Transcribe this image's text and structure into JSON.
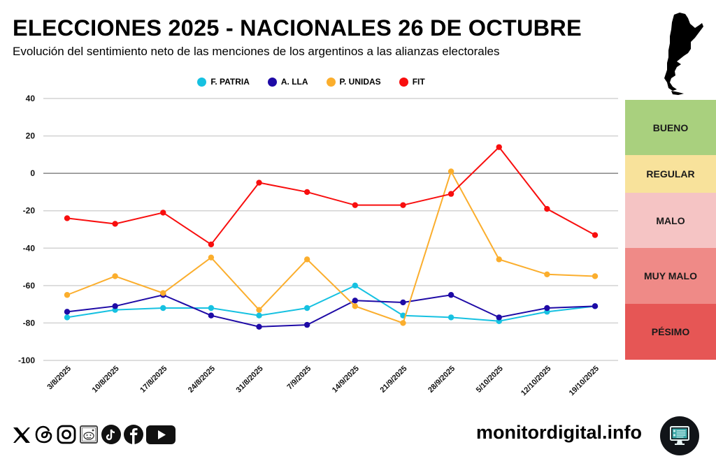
{
  "header": {
    "title": "ELECCIONES 2025 - NACIONALES 26 DE OCTUBRE",
    "subtitle": "Evolución del sentimiento neto de las menciones de los argentinos a las alianzas electorales",
    "map_icon": "argentina-map-icon"
  },
  "legend": [
    {
      "label": "F. PATRIA",
      "color": "#16c1e1"
    },
    {
      "label": "A. LLA",
      "color": "#1e0aa6"
    },
    {
      "label": "P. UNIDAS",
      "color": "#fbae2d"
    },
    {
      "label": "FIT",
      "color": "#f80e0e"
    }
  ],
  "sentiment_scale": [
    {
      "label": "BUENO",
      "color": "#a9d07e"
    },
    {
      "label": "REGULAR",
      "color": "#f8e29b"
    },
    {
      "label": "MALO",
      "color": "#f5c4c4"
    },
    {
      "label": "MUY MALO",
      "color": "#ef8a87"
    },
    {
      "label": "PÉSIMO",
      "color": "#e65655"
    }
  ],
  "chart_data": {
    "type": "line",
    "title": "ELECCIONES 2025 - NACIONALES 26 DE OCTUBRE",
    "subtitle": "Evolución del sentimiento neto de las menciones de los argentinos a las alianzas electorales",
    "xlabel": "",
    "ylabel": "",
    "ylim": [
      -100,
      40
    ],
    "yticks": [
      40,
      20,
      0,
      -20,
      -40,
      -60,
      -80,
      -100
    ],
    "grid": true,
    "legend_position": "top-center",
    "x": [
      "3/8/2025",
      "10/8/2025",
      "17/8/2025",
      "24/8/2025",
      "31/8/2025",
      "7/9/2025",
      "14/9/2025",
      "21/9/2025",
      "28/9/2025",
      "5/10/2025",
      "12/10/2025",
      "19/10/2025"
    ],
    "series": [
      {
        "name": "F. PATRIA",
        "color": "#16c1e1",
        "values": [
          -77,
          -73,
          -72,
          -72,
          -76,
          -72,
          -60,
          -76,
          -77,
          -79,
          -74,
          -71
        ]
      },
      {
        "name": "A. LLA",
        "color": "#1e0aa6",
        "values": [
          -74,
          -71,
          -65,
          -76,
          -82,
          -81,
          -68,
          -69,
          -65,
          -77,
          -72,
          -71
        ]
      },
      {
        "name": "P. UNIDAS",
        "color": "#fbae2d",
        "values": [
          -65,
          -55,
          -64,
          -45,
          -73,
          -46,
          -71,
          -80,
          1,
          -46,
          -54,
          -55
        ]
      },
      {
        "name": "FIT",
        "color": "#f80e0e",
        "values": [
          -24,
          -27,
          -21,
          -38,
          -5,
          -10,
          -17,
          -17,
          -11,
          14,
          -19,
          -33
        ]
      }
    ]
  },
  "footer": {
    "social_icons": [
      "x-icon",
      "threads-icon",
      "instagram-icon",
      "reddit-icon",
      "tiktok-icon",
      "facebook-icon",
      "youtube-icon"
    ],
    "site": "monitordigital.info",
    "site_logo": "monitor-icon"
  }
}
